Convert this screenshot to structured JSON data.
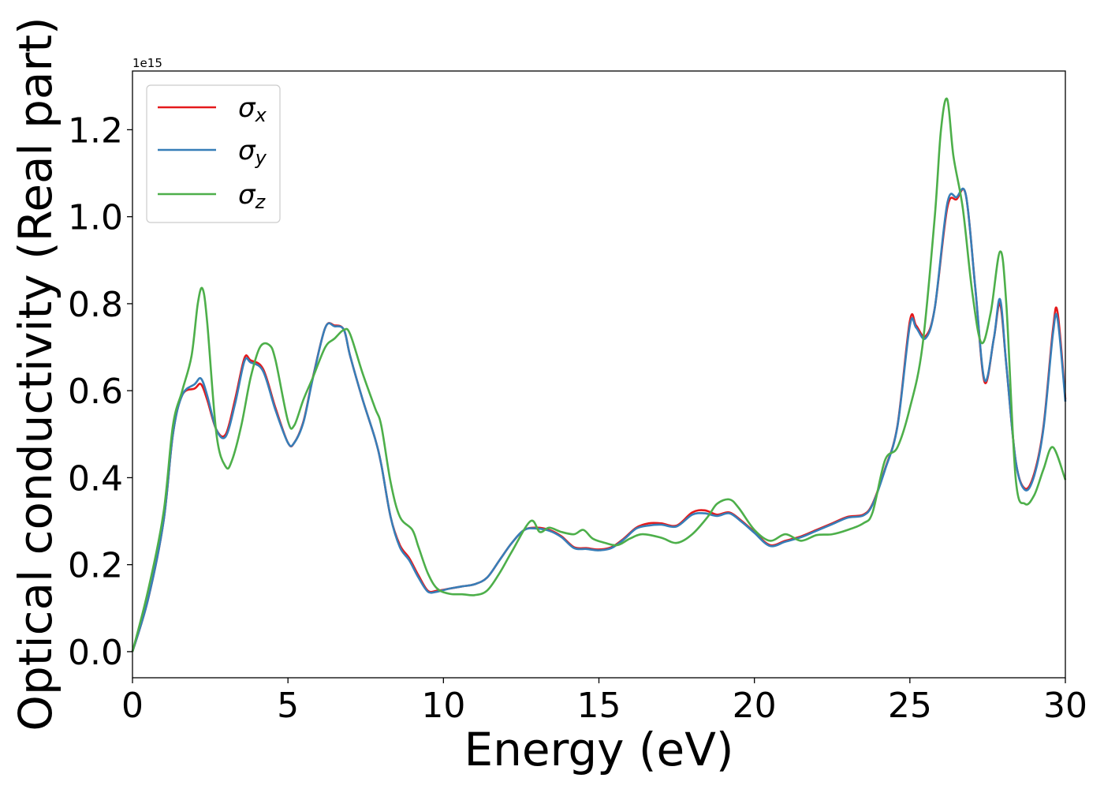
{
  "chart_data": {
    "type": "line",
    "title": "",
    "xlabel": "Energy (eV)",
    "ylabel": "Optical conductivity (Real part)",
    "y_scale_label": "1e15",
    "y_scale_factor": 1000000000000000.0,
    "xlim": [
      0,
      30
    ],
    "ylim": [
      -0.06,
      1.335
    ],
    "xticks": [
      0,
      5,
      10,
      15,
      20,
      25,
      30
    ],
    "xtick_labels": [
      "0",
      "5",
      "10",
      "15",
      "20",
      "25",
      "30"
    ],
    "yticks": [
      0.0,
      0.2,
      0.4,
      0.6,
      0.8,
      1.0,
      1.2
    ],
    "ytick_labels": [
      "0.0",
      "0.2",
      "0.4",
      "0.6",
      "0.8",
      "1.0",
      "1.2"
    ],
    "grid": false,
    "legend_position": "upper-left",
    "series": [
      {
        "name_base": "σ",
        "name_sub": "x",
        "color": "#e41a1c",
        "x": [
          0,
          0.5,
          1.0,
          1.3,
          1.6,
          2.0,
          2.2,
          2.4,
          2.7,
          3.0,
          3.3,
          3.6,
          3.8,
          4.2,
          4.6,
          5.0,
          5.2,
          5.5,
          5.8,
          6.2,
          6.5,
          6.8,
          7.0,
          7.4,
          7.8,
          8.0,
          8.3,
          8.6,
          8.9,
          9.2,
          9.5,
          9.8,
          10.2,
          10.6,
          11.0,
          11.4,
          11.8,
          12.2,
          12.6,
          13.0,
          13.4,
          13.8,
          14.2,
          14.6,
          15.0,
          15.4,
          15.8,
          16.2,
          16.6,
          17.0,
          17.5,
          18.0,
          18.4,
          18.8,
          19.2,
          19.6,
          20.0,
          20.5,
          21.0,
          21.5,
          22.0,
          22.5,
          23.0,
          23.5,
          23.8,
          24.2,
          24.6,
          25.0,
          25.2,
          25.5,
          25.8,
          26.2,
          26.5,
          26.8,
          27.1,
          27.4,
          27.7,
          27.9,
          28.1,
          28.4,
          28.7,
          29.0,
          29.3,
          29.6,
          29.75,
          30.0
        ],
        "y": [
          0.0,
          0.12,
          0.3,
          0.5,
          0.59,
          0.605,
          0.615,
          0.58,
          0.51,
          0.5,
          0.58,
          0.675,
          0.67,
          0.65,
          0.56,
          0.48,
          0.48,
          0.53,
          0.63,
          0.745,
          0.75,
          0.74,
          0.68,
          0.58,
          0.49,
          0.43,
          0.31,
          0.245,
          0.215,
          0.175,
          0.14,
          0.14,
          0.145,
          0.15,
          0.155,
          0.17,
          0.21,
          0.25,
          0.28,
          0.285,
          0.28,
          0.265,
          0.24,
          0.238,
          0.235,
          0.24,
          0.26,
          0.285,
          0.295,
          0.295,
          0.29,
          0.32,
          0.325,
          0.315,
          0.32,
          0.3,
          0.275,
          0.245,
          0.255,
          0.265,
          0.28,
          0.295,
          0.31,
          0.315,
          0.34,
          0.42,
          0.52,
          0.76,
          0.75,
          0.725,
          0.79,
          1.02,
          1.04,
          1.05,
          0.84,
          0.62,
          0.72,
          0.8,
          0.66,
          0.44,
          0.375,
          0.41,
          0.52,
          0.74,
          0.78,
          0.58
        ]
      },
      {
        "name_base": "σ",
        "name_sub": "y",
        "color": "#377eb8",
        "x": [
          0,
          0.5,
          1.0,
          1.3,
          1.6,
          2.0,
          2.2,
          2.4,
          2.7,
          3.0,
          3.3,
          3.6,
          3.8,
          4.2,
          4.6,
          5.0,
          5.2,
          5.5,
          5.8,
          6.2,
          6.5,
          6.8,
          7.0,
          7.4,
          7.8,
          8.0,
          8.3,
          8.6,
          8.9,
          9.2,
          9.5,
          9.8,
          10.2,
          10.6,
          11.0,
          11.4,
          11.8,
          12.2,
          12.6,
          13.0,
          13.4,
          13.8,
          14.2,
          14.6,
          15.0,
          15.4,
          15.8,
          16.2,
          16.6,
          17.0,
          17.5,
          18.0,
          18.4,
          18.8,
          19.2,
          19.6,
          20.0,
          20.5,
          21.0,
          21.5,
          22.0,
          22.5,
          23.0,
          23.5,
          23.8,
          24.2,
          24.6,
          25.0,
          25.2,
          25.5,
          25.8,
          26.2,
          26.5,
          26.8,
          27.1,
          27.4,
          27.7,
          27.9,
          28.1,
          28.4,
          28.7,
          29.0,
          29.3,
          29.6,
          29.75,
          30.0
        ],
        "y": [
          0.0,
          0.12,
          0.3,
          0.5,
          0.59,
          0.615,
          0.628,
          0.59,
          0.51,
          0.495,
          0.57,
          0.668,
          0.665,
          0.645,
          0.555,
          0.48,
          0.48,
          0.528,
          0.628,
          0.745,
          0.748,
          0.74,
          0.68,
          0.58,
          0.49,
          0.43,
          0.31,
          0.24,
          0.21,
          0.17,
          0.138,
          0.138,
          0.145,
          0.15,
          0.155,
          0.17,
          0.21,
          0.25,
          0.28,
          0.283,
          0.278,
          0.263,
          0.238,
          0.236,
          0.233,
          0.238,
          0.258,
          0.283,
          0.29,
          0.292,
          0.288,
          0.315,
          0.318,
          0.312,
          0.318,
          0.298,
          0.273,
          0.243,
          0.253,
          0.263,
          0.278,
          0.293,
          0.308,
          0.313,
          0.338,
          0.418,
          0.518,
          0.75,
          0.745,
          0.72,
          0.79,
          1.03,
          1.045,
          1.05,
          0.84,
          0.625,
          0.72,
          0.81,
          0.66,
          0.44,
          0.372,
          0.405,
          0.515,
          0.73,
          0.765,
          0.575
        ]
      },
      {
        "name_base": "σ",
        "name_sub": "z",
        "color": "#4daf4a",
        "x": [
          0,
          0.5,
          1.0,
          1.3,
          1.6,
          1.9,
          2.1,
          2.25,
          2.4,
          2.7,
          3.0,
          3.2,
          3.5,
          3.8,
          4.1,
          4.4,
          4.6,
          5.0,
          5.2,
          5.5,
          5.8,
          6.2,
          6.5,
          6.8,
          7.0,
          7.4,
          7.8,
          8.0,
          8.3,
          8.6,
          9.0,
          9.2,
          9.5,
          9.8,
          10.2,
          10.6,
          11.0,
          11.4,
          11.8,
          12.2,
          12.8,
          13.1,
          13.4,
          13.8,
          14.2,
          14.5,
          14.8,
          15.2,
          15.6,
          16.0,
          16.4,
          17.0,
          17.5,
          18.0,
          18.5,
          18.8,
          19.2,
          19.5,
          20.0,
          20.5,
          21.0,
          21.5,
          22.0,
          22.5,
          23.0,
          23.5,
          23.8,
          24.2,
          24.6,
          25.0,
          25.4,
          25.8,
          26.0,
          26.2,
          26.4,
          26.7,
          27.0,
          27.3,
          27.6,
          27.9,
          28.1,
          28.4,
          28.7,
          29.0,
          29.3,
          29.6,
          30.0
        ],
        "y": [
          0.0,
          0.14,
          0.32,
          0.52,
          0.6,
          0.68,
          0.8,
          0.835,
          0.76,
          0.5,
          0.425,
          0.44,
          0.52,
          0.63,
          0.7,
          0.705,
          0.67,
          0.53,
          0.52,
          0.58,
          0.63,
          0.7,
          0.72,
          0.74,
          0.73,
          0.64,
          0.56,
          0.52,
          0.39,
          0.31,
          0.28,
          0.24,
          0.18,
          0.145,
          0.133,
          0.132,
          0.13,
          0.14,
          0.18,
          0.23,
          0.3,
          0.275,
          0.285,
          0.275,
          0.27,
          0.28,
          0.26,
          0.25,
          0.245,
          0.26,
          0.27,
          0.262,
          0.25,
          0.27,
          0.31,
          0.34,
          0.35,
          0.33,
          0.28,
          0.255,
          0.27,
          0.255,
          0.268,
          0.27,
          0.28,
          0.295,
          0.32,
          0.44,
          0.47,
          0.56,
          0.7,
          1.0,
          1.2,
          1.27,
          1.14,
          1.02,
          0.83,
          0.71,
          0.78,
          0.92,
          0.8,
          0.4,
          0.34,
          0.36,
          0.42,
          0.47,
          0.395
        ]
      }
    ]
  }
}
